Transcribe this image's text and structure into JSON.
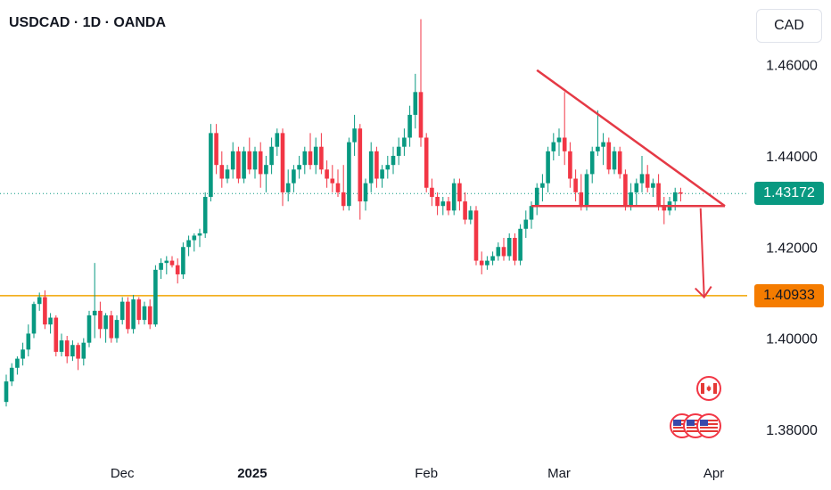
{
  "header": {
    "title": "USDCAD · 1D · OANDA"
  },
  "currency_button": {
    "label": "CAD"
  },
  "badges": {
    "last_price": "1.43172",
    "support": "1.40933"
  },
  "colors": {
    "up": "#089981",
    "down": "#f23645",
    "support_line": "#f0a500",
    "pattern": "#e53945",
    "support_badge": "#f57c00",
    "price_line": "#089981"
  },
  "chart_data": {
    "type": "candlestick",
    "title": "USDCAD · 1D · OANDA",
    "ylim": [
      1.3745,
      1.4742
    ],
    "y_ticks": [
      "1.46000",
      "1.44000",
      "1.42000",
      "1.40000",
      "1.38000"
    ],
    "x_ticks": [
      {
        "label": "Dec",
        "at": 21,
        "bold": false
      },
      {
        "label": "2025",
        "at": 44.5,
        "bold": true
      },
      {
        "label": "Feb",
        "at": 76,
        "bold": false
      },
      {
        "label": "Mar",
        "at": 100,
        "bold": false
      },
      {
        "label": "Apr",
        "at": 128,
        "bold": false
      }
    ],
    "last_price": 1.43172,
    "support_level": 1.40933,
    "grid": false,
    "candles": [
      [
        1.386,
        1.392,
        1.385,
        1.3905
      ],
      [
        1.3905,
        1.3945,
        1.3895,
        1.3935
      ],
      [
        1.3935,
        1.396,
        1.392,
        1.3955
      ],
      [
        1.3955,
        1.399,
        1.394,
        1.3975
      ],
      [
        1.3975,
        1.403,
        1.396,
        1.401
      ],
      [
        1.401,
        1.408,
        1.4,
        1.4075
      ],
      [
        1.4075,
        1.41,
        1.406,
        1.409
      ],
      [
        1.409,
        1.4105,
        1.402,
        1.403
      ],
      [
        1.403,
        1.4055,
        1.401,
        1.4045
      ],
      [
        1.4045,
        1.405,
        1.396,
        1.397
      ],
      [
        1.397,
        1.401,
        1.396,
        1.3995
      ],
      [
        1.3995,
        1.4005,
        1.3945,
        1.396
      ],
      [
        1.396,
        1.3995,
        1.395,
        1.3985
      ],
      [
        1.3985,
        1.399,
        1.393,
        1.3955
      ],
      [
        1.3955,
        1.4,
        1.394,
        1.399
      ],
      [
        1.399,
        1.406,
        1.398,
        1.405
      ],
      [
        1.405,
        1.4165,
        1.4,
        1.406
      ],
      [
        1.406,
        1.408,
        1.4,
        1.402
      ],
      [
        1.402,
        1.4055,
        1.399,
        1.405
      ],
      [
        1.405,
        1.406,
        1.399,
        1.4
      ],
      [
        1.4,
        1.405,
        1.399,
        1.404
      ],
      [
        1.404,
        1.409,
        1.403,
        1.408
      ],
      [
        1.408,
        1.409,
        1.401,
        1.402
      ],
      [
        1.402,
        1.4095,
        1.401,
        1.4085
      ],
      [
        1.4085,
        1.409,
        1.403,
        1.404
      ],
      [
        1.404,
        1.408,
        1.403,
        1.407
      ],
      [
        1.407,
        1.4085,
        1.402,
        1.403
      ],
      [
        1.403,
        1.416,
        1.4025,
        1.415
      ],
      [
        1.415,
        1.4175,
        1.413,
        1.4165
      ],
      [
        1.4165,
        1.418,
        1.414,
        1.417
      ],
      [
        1.417,
        1.418,
        1.4155,
        1.416
      ],
      [
        1.416,
        1.4175,
        1.412,
        1.414
      ],
      [
        1.414,
        1.421,
        1.413,
        1.42
      ],
      [
        1.42,
        1.4225,
        1.418,
        1.4215
      ],
      [
        1.4215,
        1.423,
        1.419,
        1.4225
      ],
      [
        1.4225,
        1.424,
        1.42,
        1.423
      ],
      [
        1.423,
        1.432,
        1.422,
        1.431
      ],
      [
        1.431,
        1.447,
        1.43,
        1.445
      ],
      [
        1.445,
        1.447,
        1.436,
        1.438
      ],
      [
        1.438,
        1.441,
        1.433,
        1.435
      ],
      [
        1.435,
        1.438,
        1.434,
        1.437
      ],
      [
        1.437,
        1.443,
        1.435,
        1.441
      ],
      [
        1.441,
        1.442,
        1.434,
        1.435
      ],
      [
        1.435,
        1.442,
        1.434,
        1.441
      ],
      [
        1.441,
        1.444,
        1.436,
        1.437
      ],
      [
        1.437,
        1.442,
        1.435,
        1.441
      ],
      [
        1.441,
        1.443,
        1.433,
        1.436
      ],
      [
        1.436,
        1.44,
        1.432,
        1.438
      ],
      [
        1.438,
        1.444,
        1.436,
        1.442
      ],
      [
        1.442,
        1.446,
        1.44,
        1.445
      ],
      [
        1.445,
        1.446,
        1.429,
        1.432
      ],
      [
        1.432,
        1.437,
        1.43,
        1.434
      ],
      [
        1.434,
        1.438,
        1.432,
        1.437
      ],
      [
        1.437,
        1.44,
        1.435,
        1.438
      ],
      [
        1.438,
        1.442,
        1.436,
        1.441
      ],
      [
        1.441,
        1.445,
        1.437,
        1.438
      ],
      [
        1.438,
        1.444,
        1.436,
        1.442
      ],
      [
        1.442,
        1.445,
        1.436,
        1.437
      ],
      [
        1.437,
        1.439,
        1.433,
        1.435
      ],
      [
        1.435,
        1.438,
        1.432,
        1.434
      ],
      [
        1.434,
        1.437,
        1.431,
        1.432
      ],
      [
        1.432,
        1.438,
        1.428,
        1.429
      ],
      [
        1.429,
        1.444,
        1.428,
        1.443
      ],
      [
        1.443,
        1.449,
        1.44,
        1.446
      ],
      [
        1.446,
        1.447,
        1.426,
        1.43
      ],
      [
        1.43,
        1.435,
        1.428,
        1.434
      ],
      [
        1.434,
        1.443,
        1.432,
        1.441
      ],
      [
        1.441,
        1.442,
        1.433,
        1.435
      ],
      [
        1.435,
        1.438,
        1.433,
        1.437
      ],
      [
        1.437,
        1.44,
        1.435,
        1.438
      ],
      [
        1.438,
        1.442,
        1.436,
        1.44
      ],
      [
        1.44,
        1.444,
        1.438,
        1.442
      ],
      [
        1.442,
        1.446,
        1.44,
        1.444
      ],
      [
        1.444,
        1.451,
        1.442,
        1.449
      ],
      [
        1.449,
        1.458,
        1.446,
        1.454
      ],
      [
        1.454,
        1.47,
        1.442,
        1.444
      ],
      [
        1.444,
        1.445,
        1.432,
        1.433
      ],
      [
        1.433,
        1.435,
        1.429,
        1.431
      ],
      [
        1.431,
        1.432,
        1.427,
        1.429
      ],
      [
        1.429,
        1.431,
        1.427,
        1.43
      ],
      [
        1.43,
        1.431,
        1.427,
        1.428
      ],
      [
        1.428,
        1.435,
        1.427,
        1.434
      ],
      [
        1.434,
        1.435,
        1.428,
        1.43
      ],
      [
        1.43,
        1.432,
        1.425,
        1.426
      ],
      [
        1.426,
        1.429,
        1.425,
        1.428
      ],
      [
        1.428,
        1.429,
        1.416,
        1.417
      ],
      [
        1.417,
        1.419,
        1.414,
        1.416
      ],
      [
        1.416,
        1.418,
        1.415,
        1.417
      ],
      [
        1.417,
        1.419,
        1.416,
        1.418
      ],
      [
        1.418,
        1.421,
        1.417,
        1.42
      ],
      [
        1.42,
        1.422,
        1.417,
        1.418
      ],
      [
        1.418,
        1.423,
        1.417,
        1.422
      ],
      [
        1.422,
        1.423,
        1.416,
        1.417
      ],
      [
        1.417,
        1.425,
        1.416,
        1.424
      ],
      [
        1.424,
        1.428,
        1.422,
        1.426
      ],
      [
        1.426,
        1.43,
        1.424,
        1.429
      ],
      [
        1.429,
        1.434,
        1.427,
        1.433
      ],
      [
        1.433,
        1.436,
        1.43,
        1.434
      ],
      [
        1.434,
        1.442,
        1.432,
        1.441
      ],
      [
        1.441,
        1.445,
        1.439,
        1.443
      ],
      [
        1.443,
        1.446,
        1.44,
        1.444
      ],
      [
        1.444,
        1.454,
        1.438,
        1.441
      ],
      [
        1.441,
        1.443,
        1.433,
        1.435
      ],
      [
        1.435,
        1.437,
        1.43,
        1.432
      ],
      [
        1.432,
        1.436,
        1.428,
        1.429
      ],
      [
        1.429,
        1.437,
        1.428,
        1.436
      ],
      [
        1.436,
        1.442,
        1.434,
        1.441
      ],
      [
        1.441,
        1.45,
        1.44,
        1.442
      ],
      [
        1.442,
        1.445,
        1.438,
        1.443
      ],
      [
        1.443,
        1.444,
        1.436,
        1.437
      ],
      [
        1.437,
        1.442,
        1.436,
        1.441
      ],
      [
        1.441,
        1.442,
        1.435,
        1.436
      ],
      [
        1.436,
        1.437,
        1.428,
        1.429
      ],
      [
        1.429,
        1.434,
        1.428,
        1.432
      ],
      [
        1.432,
        1.435,
        1.429,
        1.434
      ],
      [
        1.434,
        1.44,
        1.432,
        1.436
      ],
      [
        1.436,
        1.438,
        1.432,
        1.433
      ],
      [
        1.433,
        1.435,
        1.431,
        1.434
      ],
      [
        1.434,
        1.436,
        1.428,
        1.429
      ],
      [
        1.429,
        1.431,
        1.425,
        1.428
      ],
      [
        1.428,
        1.431,
        1.427,
        1.43
      ],
      [
        1.43,
        1.433,
        1.428,
        1.432
      ],
      [
        1.432,
        1.433,
        1.43,
        1.4317
      ]
    ]
  }
}
